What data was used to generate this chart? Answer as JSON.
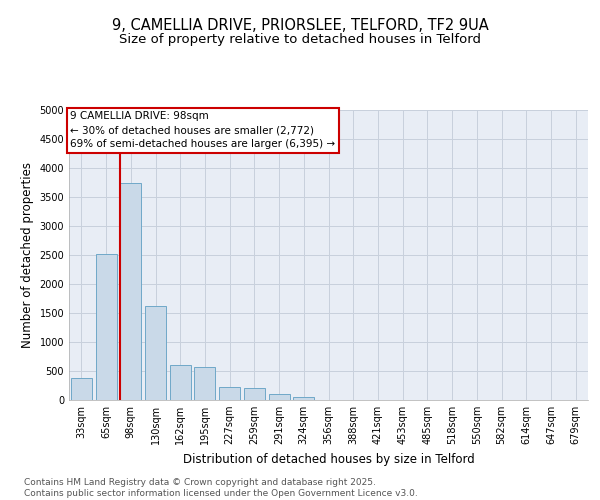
{
  "title_line1": "9, CAMELLIA DRIVE, PRIORSLEE, TELFORD, TF2 9UA",
  "title_line2": "Size of property relative to detached houses in Telford",
  "xlabel": "Distribution of detached houses by size in Telford",
  "ylabel": "Number of detached properties",
  "categories": [
    "33sqm",
    "65sqm",
    "98sqm",
    "130sqm",
    "162sqm",
    "195sqm",
    "227sqm",
    "259sqm",
    "291sqm",
    "324sqm",
    "356sqm",
    "388sqm",
    "421sqm",
    "453sqm",
    "485sqm",
    "518sqm",
    "550sqm",
    "582sqm",
    "614sqm",
    "647sqm",
    "679sqm"
  ],
  "values": [
    380,
    2520,
    3750,
    1620,
    600,
    570,
    230,
    210,
    100,
    60,
    0,
    0,
    0,
    0,
    0,
    0,
    0,
    0,
    0,
    0,
    0
  ],
  "bar_color": "#c9d9e8",
  "bar_edge_color": "#6fa8c8",
  "vline_x_index": 2,
  "vline_color": "#cc0000",
  "annotation_text": "9 CAMELLIA DRIVE: 98sqm\n← 30% of detached houses are smaller (2,772)\n69% of semi-detached houses are larger (6,395) →",
  "annotation_box_color": "#ffffff",
  "annotation_box_edge_color": "#cc0000",
  "ylim": [
    0,
    5000
  ],
  "yticks": [
    0,
    500,
    1000,
    1500,
    2000,
    2500,
    3000,
    3500,
    4000,
    4500,
    5000
  ],
  "grid_color": "#c8d0dc",
  "background_color": "#e8edf5",
  "footer_text": "Contains HM Land Registry data © Crown copyright and database right 2025.\nContains public sector information licensed under the Open Government Licence v3.0.",
  "title_fontsize": 10.5,
  "subtitle_fontsize": 9.5,
  "axis_label_fontsize": 8.5,
  "tick_fontsize": 7,
  "footer_fontsize": 6.5,
  "annot_fontsize": 7.5
}
